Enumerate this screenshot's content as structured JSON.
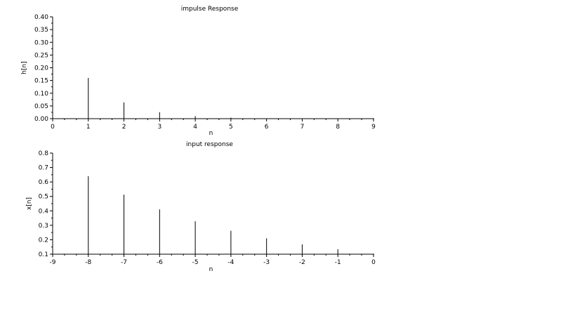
{
  "chart_data": [
    {
      "type": "stem",
      "title": "impulse Response",
      "xlabel": "n",
      "ylabel": "h[n]",
      "xlim": [
        0,
        9
      ],
      "ylim": [
        0,
        0.4
      ],
      "xticks": [
        "0",
        "1",
        "2",
        "3",
        "4",
        "5",
        "6",
        "7",
        "8",
        "9"
      ],
      "yticks": [
        "0.00",
        "0.05",
        "0.10",
        "0.15",
        "0.20",
        "0.25",
        "0.30",
        "0.35",
        "0.40"
      ],
      "x": [
        1,
        2,
        3,
        4,
        5
      ],
      "values": [
        0.16,
        0.064,
        0.0256,
        0.0102,
        0.0041
      ]
    },
    {
      "type": "stem",
      "title": "input response",
      "xlabel": "n",
      "ylabel": "x[n]",
      "xlim": [
        -9,
        0
      ],
      "ylim": [
        0.1,
        0.8
      ],
      "xticks": [
        "-9",
        "-8",
        "-7",
        "-6",
        "-5",
        "-4",
        "-3",
        "-2",
        "-1",
        "0"
      ],
      "yticks": [
        "0.1",
        "0.2",
        "0.3",
        "0.4",
        "0.5",
        "0.6",
        "0.7",
        "0.8"
      ],
      "x": [
        -8,
        -7,
        -6,
        -5,
        -4,
        -3,
        -2,
        -1
      ],
      "values": [
        0.64,
        0.512,
        0.41,
        0.328,
        0.262,
        0.21,
        0.168,
        0.134
      ]
    }
  ]
}
